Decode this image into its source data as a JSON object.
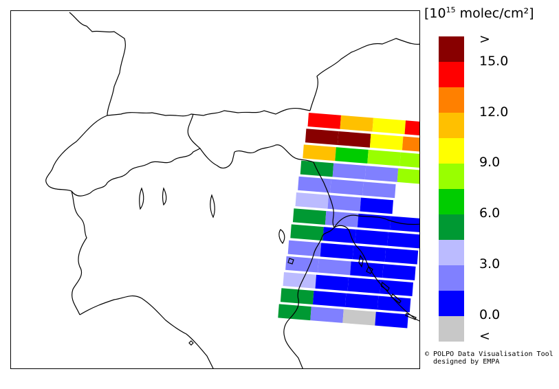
{
  "legend": {
    "title_base": "[10",
    "title_exp": "15",
    "title_unit": " molec/cm²]",
    "labels": {
      "gt": ">",
      "v15": "15.0",
      "v12": "12.0",
      "v9": "9.0",
      "v6": "6.0",
      "v3": "3.0",
      "v0": "0.0",
      "lt": "<"
    },
    "colors": [
      "#880000",
      "#ff0000",
      "#ff8000",
      "#ffc000",
      "#ffff00",
      "#99ff00",
      "#00cc00",
      "#009933",
      "#bbbbff",
      "#8080ff",
      "#0000ff",
      "#c8c8c8"
    ]
  },
  "credit": {
    "line1": "© POLPO Data Visualisation Tool",
    "line2": "  designed by EMPA"
  },
  "swath_rows": [
    [
      "#ff0000",
      "#ffc000",
      "#ffff00",
      "#ff0000"
    ],
    [
      "#880000",
      "#880000",
      "#ffff00",
      "#ff8000"
    ],
    [
      "#ffc000",
      "#00cc00",
      "#99ff00",
      "#99ff00"
    ],
    [
      "#009933",
      "#8080ff",
      "#8080ff",
      "#99ff00"
    ],
    [
      "#8080ff",
      "#8080ff",
      "#8080ff",
      ""
    ],
    [
      "#bbbbff",
      "#8080ff",
      "#0000ff",
      ""
    ],
    [
      "#009933",
      "#8080ff",
      "#0000ff",
      "#0000ff"
    ],
    [
      "#009933",
      "#0000ff",
      "#0000ff",
      "#0000ff"
    ],
    [
      "#8080ff",
      "#0000ff",
      "#0000ff",
      "#0000ff"
    ],
    [
      "#8080ff",
      "#8080ff",
      "#0000ff",
      "#0000ff"
    ],
    [
      "#bbbbff",
      "#0000ff",
      "#0000ff",
      "#0000ff"
    ],
    [
      "#009933",
      "#0000ff",
      "#0000ff",
      "#0000ff"
    ],
    [
      "#009933",
      "#8080ff",
      "#c8c8c8",
      "#0000ff"
    ]
  ]
}
